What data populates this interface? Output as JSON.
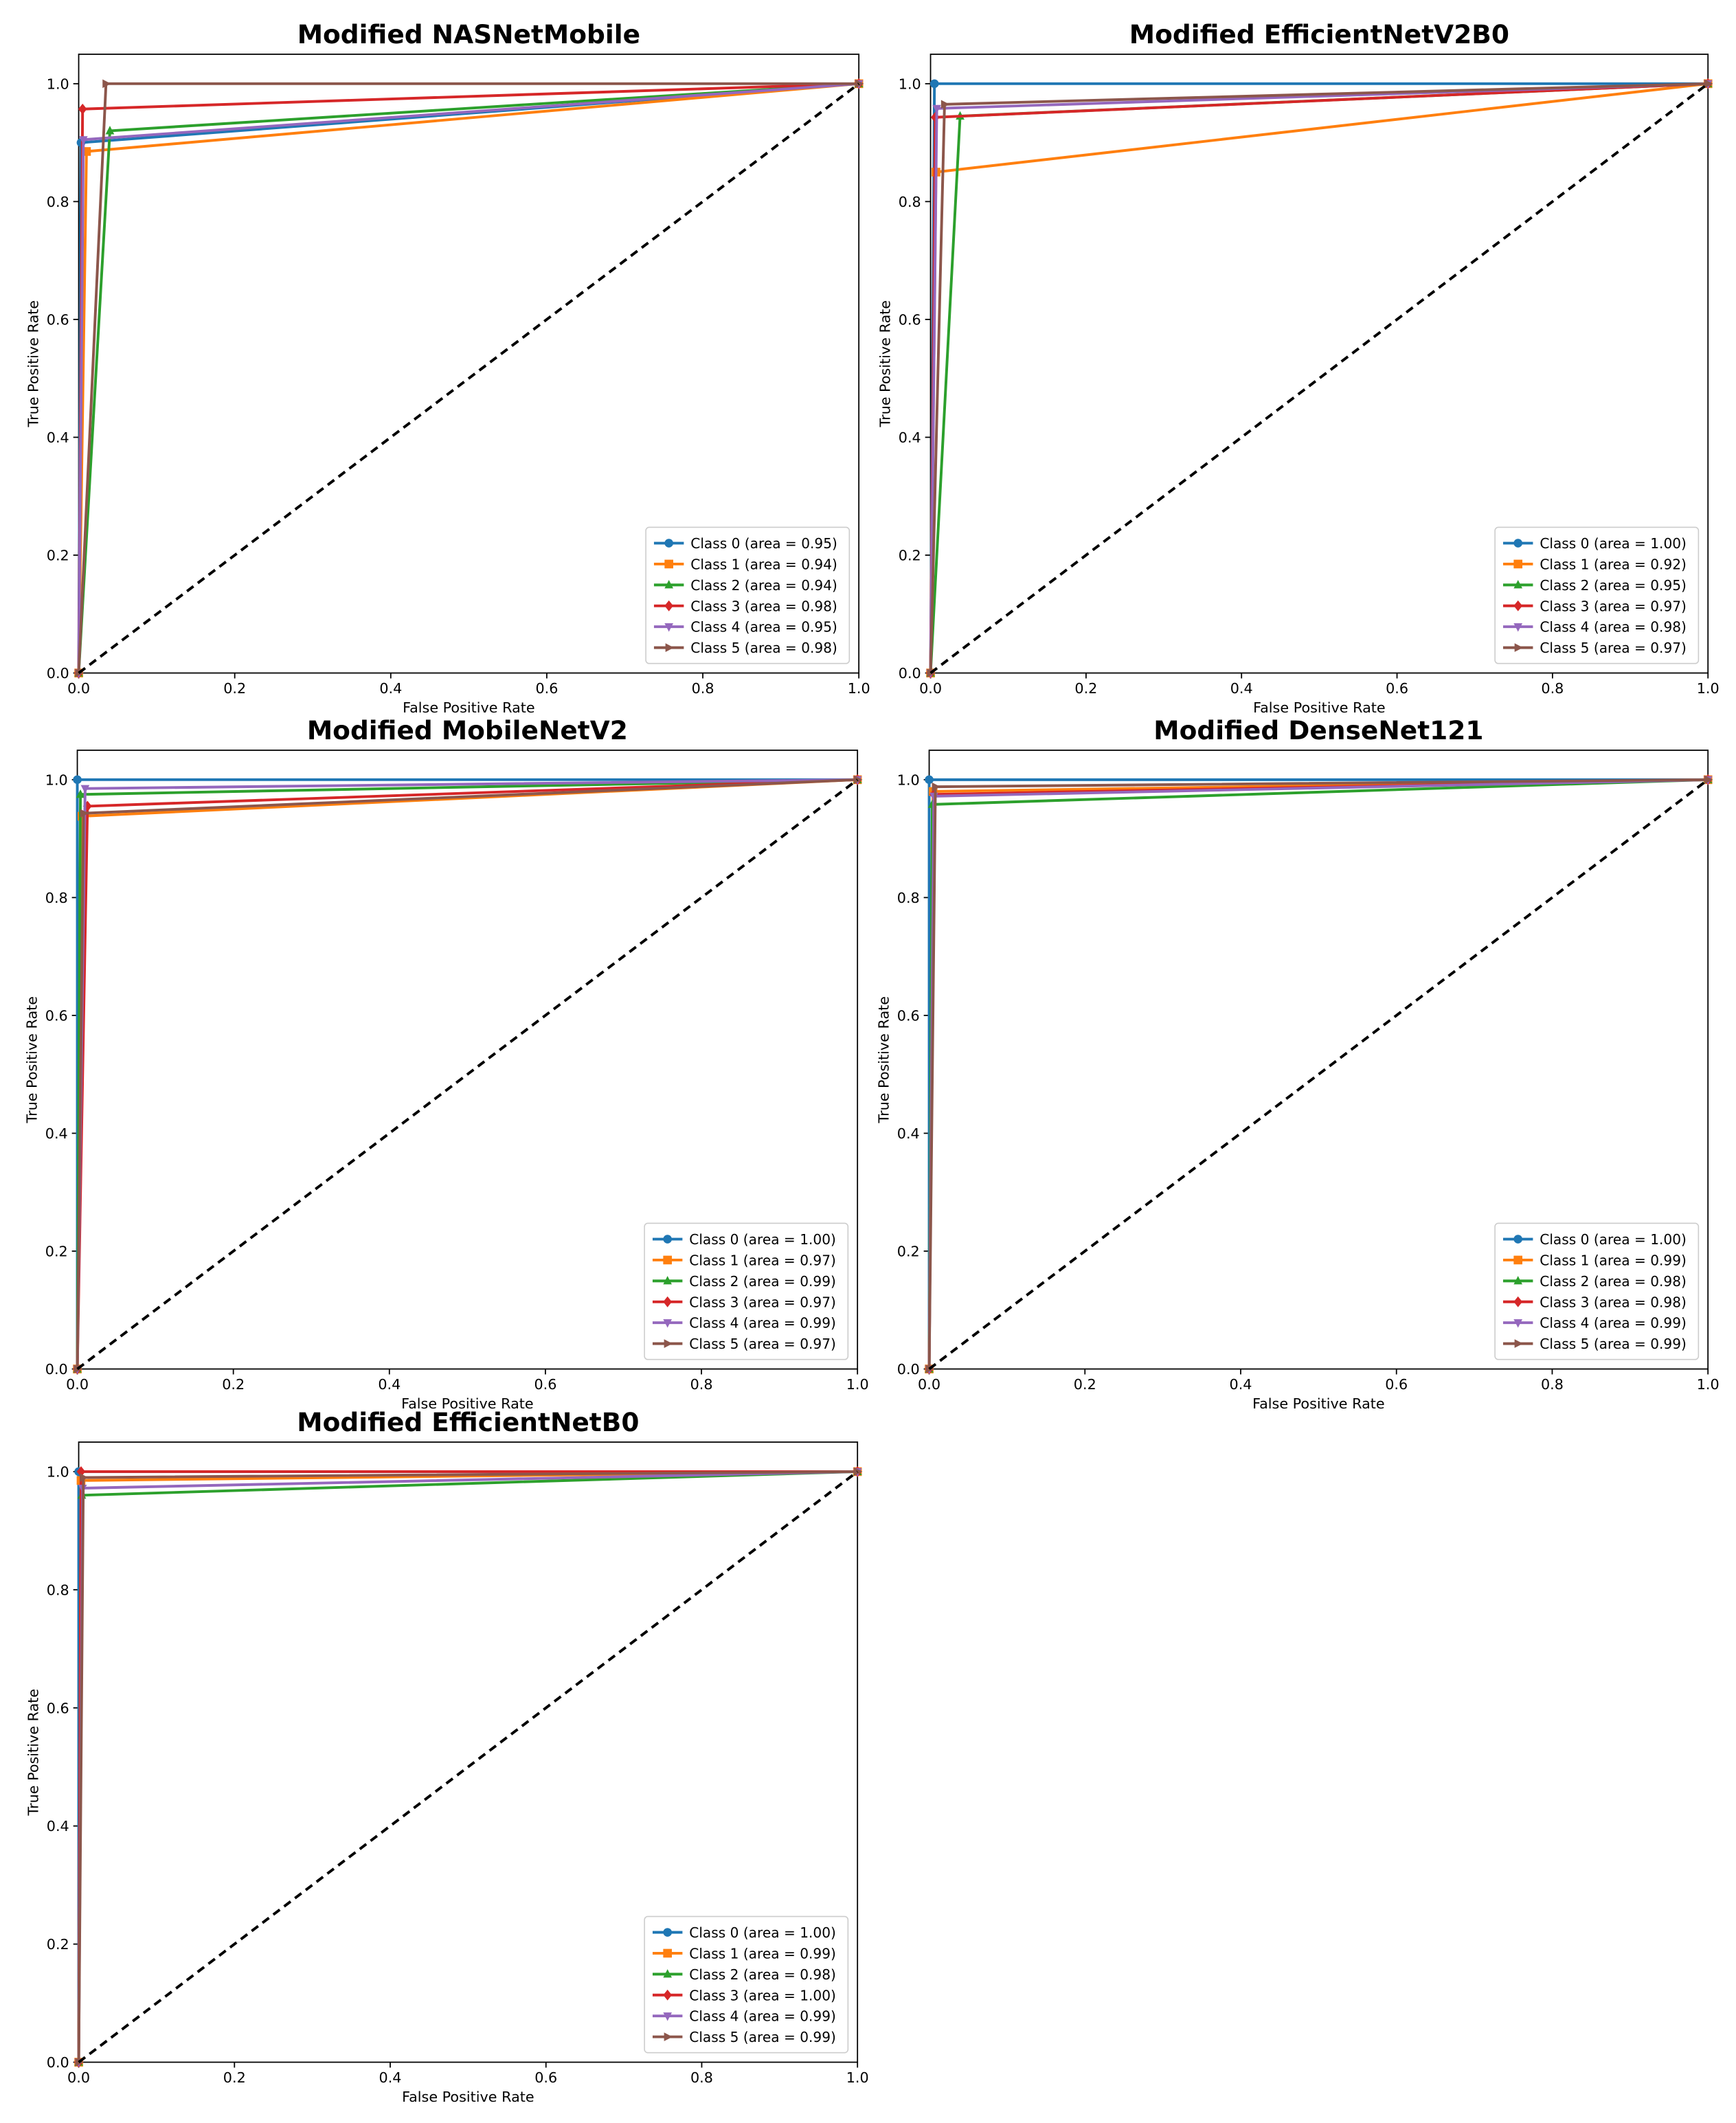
{
  "chart_data": [
    {
      "type": "line",
      "title": "Modified NASNetMobile",
      "xlabel": "False Positive Rate",
      "ylabel": "True Positive Rate",
      "xlim": [
        0,
        1
      ],
      "ylim": [
        0,
        1.05
      ],
      "xticks": [
        "0.0",
        "0.2",
        "0.4",
        "0.6",
        "0.8",
        "1.0"
      ],
      "yticks": [
        "0.0",
        "0.2",
        "0.4",
        "0.6",
        "0.8",
        "1.0"
      ],
      "grid": false,
      "legend_position": "lower right",
      "reference_line": {
        "x": [
          0,
          1
        ],
        "y": [
          0,
          1
        ],
        "style": "dashed",
        "color": "#000000"
      },
      "series": [
        {
          "name": "Class 0 (area = 0.95)",
          "marker": "circle",
          "color": "#1f77b4",
          "x": [
            0,
            0.003,
            1
          ],
          "y": [
            0,
            0.9,
            1
          ]
        },
        {
          "name": "Class 1 (area = 0.94)",
          "marker": "square",
          "color": "#ff7f0e",
          "x": [
            0,
            0.01,
            1
          ],
          "y": [
            0,
            0.885,
            1
          ]
        },
        {
          "name": "Class 2 (area = 0.94)",
          "marker": "triangle-up",
          "color": "#2ca02c",
          "x": [
            0,
            0.04,
            1
          ],
          "y": [
            0,
            0.92,
            1
          ]
        },
        {
          "name": "Class 3 (area = 0.98)",
          "marker": "diamond",
          "color": "#d62728",
          "x": [
            0,
            0.005,
            1
          ],
          "y": [
            0,
            0.957,
            1
          ]
        },
        {
          "name": "Class 4 (area = 0.95)",
          "marker": "triangle-down",
          "color": "#9467bd",
          "x": [
            0,
            0.006,
            1
          ],
          "y": [
            0,
            0.905,
            1
          ]
        },
        {
          "name": "Class 5 (area = 0.98)",
          "marker": "triangle-right",
          "color": "#8c564b",
          "x": [
            0,
            0.035,
            1
          ],
          "y": [
            0,
            1.0,
            1
          ]
        }
      ]
    },
    {
      "type": "line",
      "title": "Modified EfficientNetV2B0",
      "xlabel": "False Positive Rate",
      "ylabel": "True Positive Rate",
      "xlim": [
        0,
        1
      ],
      "ylim": [
        0,
        1.05
      ],
      "xticks": [
        "0.0",
        "0.2",
        "0.4",
        "0.6",
        "0.8",
        "1.0"
      ],
      "yticks": [
        "0.0",
        "0.2",
        "0.4",
        "0.6",
        "0.8",
        "1.0"
      ],
      "grid": false,
      "legend_position": "lower right",
      "reference_line": {
        "x": [
          0,
          1
        ],
        "y": [
          0,
          1
        ],
        "style": "dashed",
        "color": "#000000"
      },
      "series": [
        {
          "name": "Class 0 (area = 1.00)",
          "marker": "circle",
          "color": "#1f77b4",
          "x": [
            0,
            0.005,
            1
          ],
          "y": [
            0,
            1.0,
            1
          ]
        },
        {
          "name": "Class 1 (area = 0.92)",
          "marker": "square",
          "color": "#ff7f0e",
          "x": [
            0,
            0.007,
            1
          ],
          "y": [
            0,
            0.85,
            1
          ]
        },
        {
          "name": "Class 2 (area = 0.95)",
          "marker": "triangle-up",
          "color": "#2ca02c",
          "x": [
            0,
            0.038,
            1
          ],
          "y": [
            0,
            0.945,
            1
          ]
        },
        {
          "name": "Class 3 (area = 0.97)",
          "marker": "diamond",
          "color": "#d62728",
          "x": [
            0,
            0.006,
            1
          ],
          "y": [
            0,
            0.943,
            1
          ]
        },
        {
          "name": "Class 4 (area = 0.98)",
          "marker": "triangle-down",
          "color": "#9467bd",
          "x": [
            0,
            0.008,
            1
          ],
          "y": [
            0,
            0.958,
            1
          ]
        },
        {
          "name": "Class 5 (area = 0.97)",
          "marker": "triangle-right",
          "color": "#8c564b",
          "x": [
            0,
            0.018,
            1
          ],
          "y": [
            0,
            0.965,
            1
          ]
        }
      ]
    },
    {
      "type": "line",
      "title": "Modified MobileNetV2",
      "xlabel": "False Positive Rate",
      "ylabel": "True Positive Rate",
      "xlim": [
        0,
        1
      ],
      "ylim": [
        0,
        1.05
      ],
      "xticks": [
        "0.0",
        "0.2",
        "0.4",
        "0.6",
        "0.8",
        "1.0"
      ],
      "yticks": [
        "0.0",
        "0.2",
        "0.4",
        "0.6",
        "0.8",
        "1.0"
      ],
      "grid": false,
      "legend_position": "lower right",
      "reference_line": {
        "x": [
          0,
          1
        ],
        "y": [
          0,
          1
        ],
        "style": "dashed",
        "color": "#000000"
      },
      "series": [
        {
          "name": "Class 0 (area = 1.00)",
          "marker": "circle",
          "color": "#1f77b4",
          "x": [
            0,
            0.0,
            1
          ],
          "y": [
            0,
            1.0,
            1
          ]
        },
        {
          "name": "Class 1 (area = 0.97)",
          "marker": "square",
          "color": "#ff7f0e",
          "x": [
            0,
            0.006,
            1
          ],
          "y": [
            0,
            0.938,
            1
          ]
        },
        {
          "name": "Class 2 (area = 0.99)",
          "marker": "triangle-up",
          "color": "#2ca02c",
          "x": [
            0,
            0.004,
            1
          ],
          "y": [
            0,
            0.975,
            1
          ]
        },
        {
          "name": "Class 3 (area = 0.97)",
          "marker": "diamond",
          "color": "#d62728",
          "x": [
            0,
            0.013,
            1
          ],
          "y": [
            0,
            0.955,
            1
          ]
        },
        {
          "name": "Class 4 (area = 0.99)",
          "marker": "triangle-down",
          "color": "#9467bd",
          "x": [
            0,
            0.01,
            1
          ],
          "y": [
            0,
            0.985,
            1
          ]
        },
        {
          "name": "Class 5 (area = 0.97)",
          "marker": "triangle-right",
          "color": "#8c564b",
          "x": [
            0,
            0.008,
            1
          ],
          "y": [
            0,
            0.943,
            1
          ]
        }
      ]
    },
    {
      "type": "line",
      "title": "Modified DenseNet121",
      "xlabel": "False Positive Rate",
      "ylabel": "True Positive Rate",
      "xlim": [
        0,
        1
      ],
      "ylim": [
        0,
        1.05
      ],
      "xticks": [
        "0.0",
        "0.2",
        "0.4",
        "0.6",
        "0.8",
        "1.0"
      ],
      "yticks": [
        "0.0",
        "0.2",
        "0.4",
        "0.6",
        "0.8",
        "1.0"
      ],
      "grid": false,
      "legend_position": "lower right",
      "reference_line": {
        "x": [
          0,
          1
        ],
        "y": [
          0,
          1
        ],
        "style": "dashed",
        "color": "#000000"
      },
      "series": [
        {
          "name": "Class 0 (area = 1.00)",
          "marker": "circle",
          "color": "#1f77b4",
          "x": [
            0,
            0.0,
            1
          ],
          "y": [
            0,
            1.0,
            1
          ]
        },
        {
          "name": "Class 1 (area = 0.99)",
          "marker": "square",
          "color": "#ff7f0e",
          "x": [
            0,
            0.005,
            1
          ],
          "y": [
            0,
            0.98,
            1
          ]
        },
        {
          "name": "Class 2 (area = 0.98)",
          "marker": "triangle-up",
          "color": "#2ca02c",
          "x": [
            0,
            0.004,
            1
          ],
          "y": [
            0,
            0.958,
            1
          ]
        },
        {
          "name": "Class 3 (area = 0.98)",
          "marker": "diamond",
          "color": "#d62728",
          "x": [
            0,
            0.006,
            1
          ],
          "y": [
            0,
            0.975,
            1
          ]
        },
        {
          "name": "Class 4 (area = 0.99)",
          "marker": "triangle-down",
          "color": "#9467bd",
          "x": [
            0,
            0.006,
            1
          ],
          "y": [
            0,
            0.972,
            1
          ]
        },
        {
          "name": "Class 5 (area = 0.99)",
          "marker": "triangle-right",
          "color": "#8c564b",
          "x": [
            0,
            0.008,
            1
          ],
          "y": [
            0,
            0.988,
            1
          ]
        }
      ]
    },
    {
      "type": "line",
      "title": "Modified EfficientNetB0",
      "xlabel": "False Positive Rate",
      "ylabel": "True Positive Rate",
      "xlim": [
        0,
        1
      ],
      "ylim": [
        0,
        1.05
      ],
      "xticks": [
        "0.0",
        "0.2",
        "0.4",
        "0.6",
        "0.8",
        "1.0"
      ],
      "yticks": [
        "0.0",
        "0.2",
        "0.4",
        "0.6",
        "0.8",
        "1.0"
      ],
      "grid": false,
      "legend_position": "lower right",
      "reference_line": {
        "x": [
          0,
          1
        ],
        "y": [
          0,
          1
        ],
        "style": "dashed",
        "color": "#000000"
      },
      "series": [
        {
          "name": "Class 0 (area = 1.00)",
          "marker": "circle",
          "color": "#1f77b4",
          "x": [
            0,
            0.0,
            1
          ],
          "y": [
            0,
            1.0,
            1
          ]
        },
        {
          "name": "Class 1 (area = 0.99)",
          "marker": "square",
          "color": "#ff7f0e",
          "x": [
            0,
            0.003,
            1
          ],
          "y": [
            0,
            0.985,
            1
          ]
        },
        {
          "name": "Class 2 (area = 0.98)",
          "marker": "triangle-up",
          "color": "#2ca02c",
          "x": [
            0,
            0.004,
            1
          ],
          "y": [
            0,
            0.96,
            1
          ]
        },
        {
          "name": "Class 3 (area = 1.00)",
          "marker": "diamond",
          "color": "#d62728",
          "x": [
            0,
            0.003,
            1
          ],
          "y": [
            0,
            1.0,
            1
          ]
        },
        {
          "name": "Class 4 (area = 0.99)",
          "marker": "triangle-down",
          "color": "#9467bd",
          "x": [
            0,
            0.005,
            1
          ],
          "y": [
            0,
            0.972,
            1
          ]
        },
        {
          "name": "Class 5 (area = 0.99)",
          "marker": "triangle-right",
          "color": "#8c564b",
          "x": [
            0,
            0.006,
            1
          ],
          "y": [
            0,
            0.99,
            1
          ]
        }
      ]
    }
  ]
}
